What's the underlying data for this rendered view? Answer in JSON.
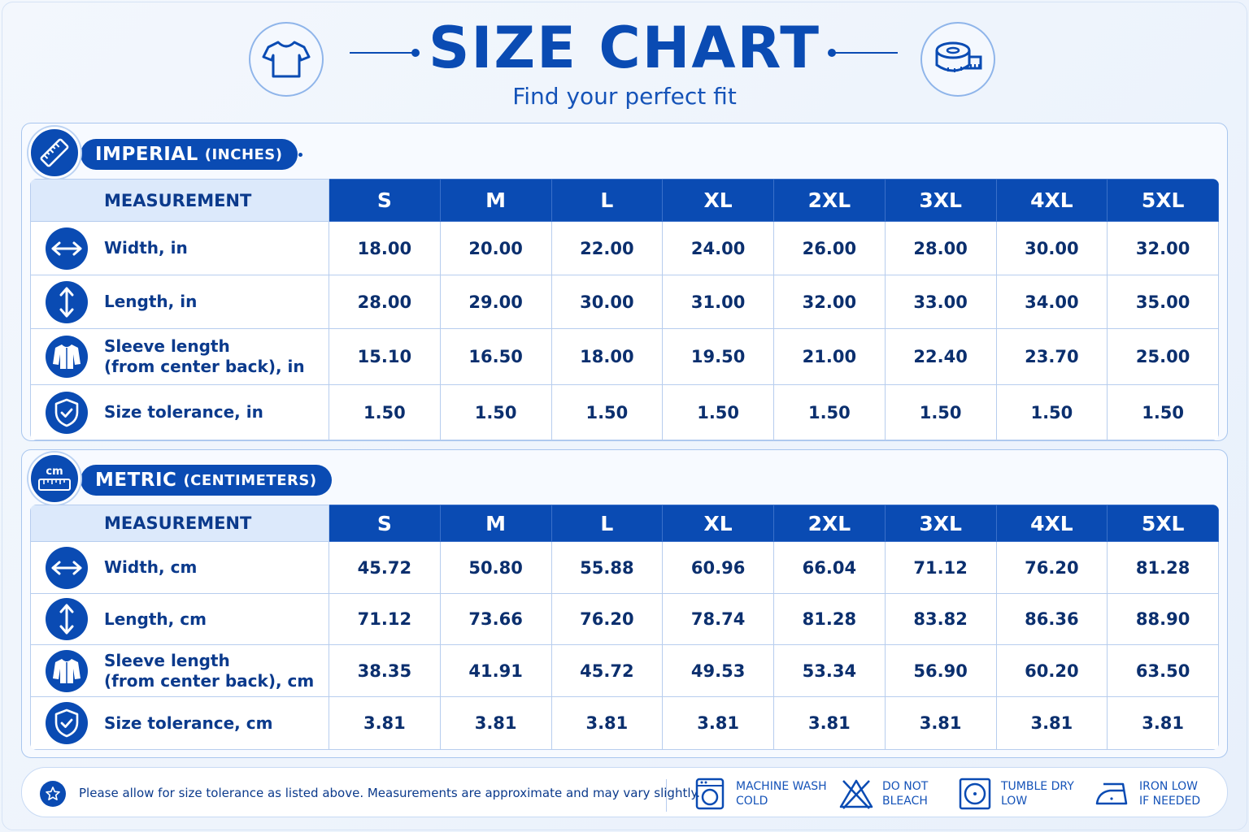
{
  "header": {
    "title": "SIZE CHART",
    "subtitle": "Find your perfect fit",
    "left_icon": "tshirt-icon",
    "right_icon": "measuring-tape-icon"
  },
  "colors": {
    "primary": "#0a4bb3",
    "header_cell": "#dce9fb",
    "border": "#b7cdee"
  },
  "sizes": [
    "S",
    "M",
    "L",
    "XL",
    "2XL",
    "3XL",
    "4XL",
    "5XL"
  ],
  "imperial": {
    "badge_main": "IMPERIAL",
    "badge_sub": "(INCHES)",
    "badge_icon": "ruler-icon",
    "measurement_header": "MEASUREMENT",
    "rows": [
      {
        "icon": "horizontal-arrows-icon",
        "label": "Width, in",
        "values": [
          "18.00",
          "20.00",
          "22.00",
          "24.00",
          "26.00",
          "28.00",
          "30.00",
          "32.00"
        ]
      },
      {
        "icon": "vertical-arrows-icon",
        "label": "Length, in",
        "values": [
          "28.00",
          "29.00",
          "30.00",
          "31.00",
          "32.00",
          "33.00",
          "34.00",
          "35.00"
        ]
      },
      {
        "icon": "shirt-sleeve-icon",
        "label": "Sleeve length\n(from center back), in",
        "values": [
          "15.10",
          "16.50",
          "18.00",
          "19.50",
          "21.00",
          "22.40",
          "23.70",
          "25.00"
        ]
      },
      {
        "icon": "shield-check-icon",
        "label": "Size tolerance, in",
        "values": [
          "1.50",
          "1.50",
          "1.50",
          "1.50",
          "1.50",
          "1.50",
          "1.50",
          "1.50"
        ]
      }
    ]
  },
  "metric": {
    "badge_main": "METRIC",
    "badge_sub": "(CENTIMETERS)",
    "badge_icon": "cm-ruler-icon",
    "badge_icon_text": "cm",
    "measurement_header": "MEASUREMENT",
    "rows": [
      {
        "icon": "horizontal-arrows-icon",
        "label": "Width, cm",
        "values": [
          "45.72",
          "50.80",
          "55.88",
          "60.96",
          "66.04",
          "71.12",
          "76.20",
          "81.28"
        ]
      },
      {
        "icon": "vertical-arrows-icon",
        "label": "Length, cm",
        "values": [
          "71.12",
          "73.66",
          "76.20",
          "78.74",
          "81.28",
          "83.82",
          "86.36",
          "88.90"
        ]
      },
      {
        "icon": "shirt-sleeve-icon",
        "label": "Sleeve length\n(from center back), cm",
        "values": [
          "38.35",
          "41.91",
          "45.72",
          "49.53",
          "53.34",
          "56.90",
          "60.20",
          "63.50"
        ]
      },
      {
        "icon": "shield-check-icon",
        "label": "Size tolerance, cm",
        "values": [
          "3.81",
          "3.81",
          "3.81",
          "3.81",
          "3.81",
          "3.81",
          "3.81",
          "3.81"
        ]
      }
    ]
  },
  "footer": {
    "icon": "star-icon",
    "note": "Please allow for size tolerance as listed above. Measurements are approximate and may vary slightly.",
    "care": [
      {
        "icon": "machine-wash-icon",
        "label": "MACHINE WASH\nCOLD"
      },
      {
        "icon": "do-not-bleach-icon",
        "label": "DO NOT\nBLEACH"
      },
      {
        "icon": "tumble-dry-icon",
        "label": "TUMBLE DRY\nLOW"
      },
      {
        "icon": "iron-icon",
        "label": "IRON LOW\nIF NEEDED"
      }
    ]
  }
}
